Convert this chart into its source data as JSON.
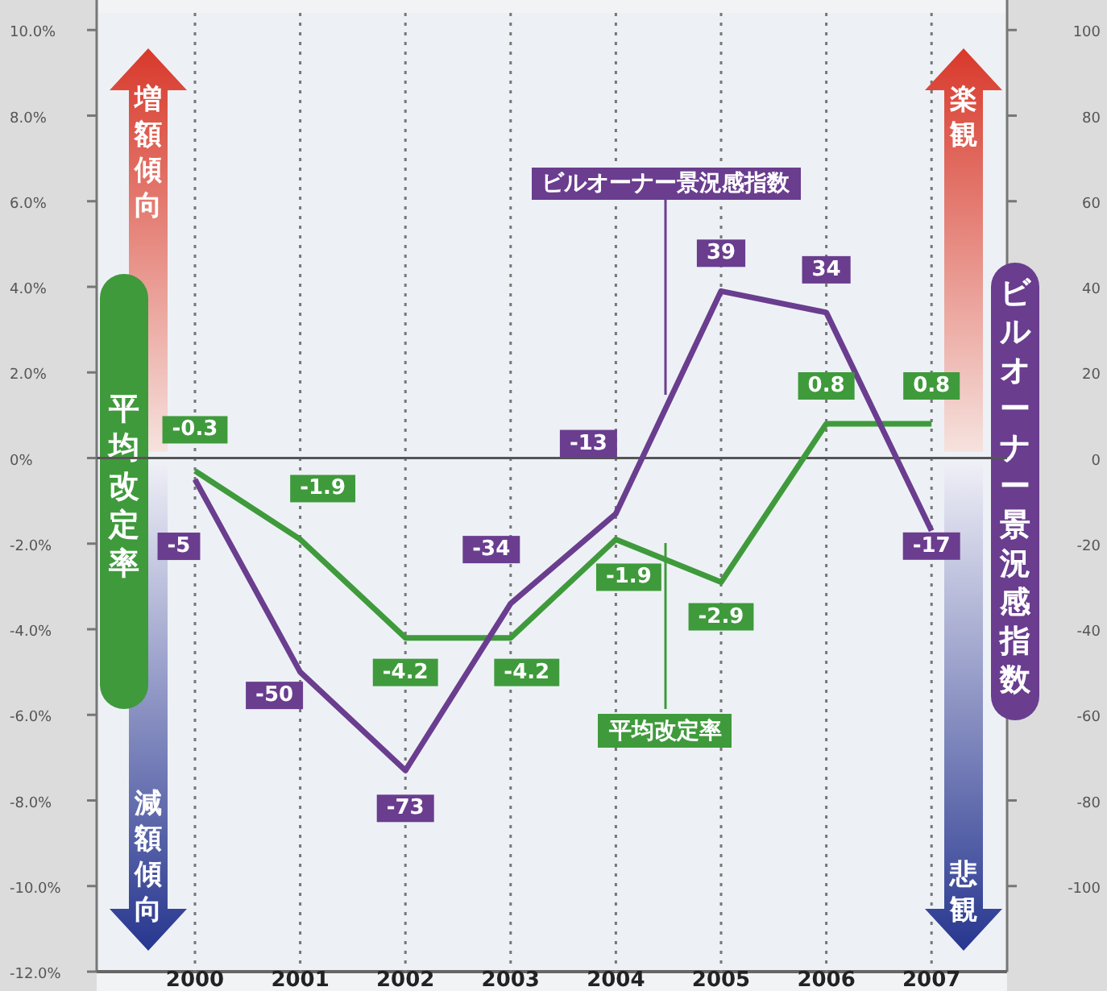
{
  "chart_data": {
    "type": "line",
    "categories": [
      "2000",
      "2001",
      "2002",
      "2003",
      "2004",
      "2005",
      "2006",
      "2007"
    ],
    "series": [
      {
        "name": "平均改定率",
        "color": "#3f9a3c",
        "values": [
          -0.3,
          -1.9,
          -4.2,
          -4.2,
          -1.9,
          -2.9,
          0.8,
          0.8
        ]
      },
      {
        "name": "ビルオーナー景況感指数",
        "color": "#6a3d8f",
        "axis": "y2",
        "values": [
          -5,
          -50,
          -73,
          -34,
          -13,
          39,
          34,
          -17
        ]
      }
    ],
    "ylabel": "平均改定率",
    "y2label": "ビルオーナー景況感指数",
    "ylim": [
      -12,
      10.4
    ],
    "yticks": [
      {
        "value": 10,
        "label": "10.0%"
      },
      {
        "value": 8,
        "label": "8.0%"
      },
      {
        "value": 6,
        "label": "6.0%"
      },
      {
        "value": 4,
        "label": "4.0%"
      },
      {
        "value": 2,
        "label": "2.0%"
      },
      {
        "value": 0,
        "label": "0%"
      },
      {
        "value": -2,
        "label": "-2.0%"
      },
      {
        "value": -4,
        "label": "-4.0%"
      },
      {
        "value": -6,
        "label": "-6.0%"
      },
      {
        "value": -8,
        "label": "-8.0%"
      },
      {
        "value": -10,
        "label": "-10.0%"
      },
      {
        "value": -12,
        "label": "-12.0%"
      }
    ],
    "y2lim": [
      -120,
      104
    ],
    "y2ticks": [
      100,
      80,
      60,
      40,
      20,
      0,
      -20,
      -40,
      -60,
      -80,
      -100
    ],
    "ref_lines": [
      {
        "axis": "y",
        "value": 0,
        "color": "#555555"
      }
    ],
    "annotations": [
      "増額傾向",
      "減額傾向",
      "楽観",
      "悲観"
    ],
    "data_labels": true,
    "grid": "x",
    "legend": false,
    "marker": "none",
    "line_style": "solid"
  }
}
